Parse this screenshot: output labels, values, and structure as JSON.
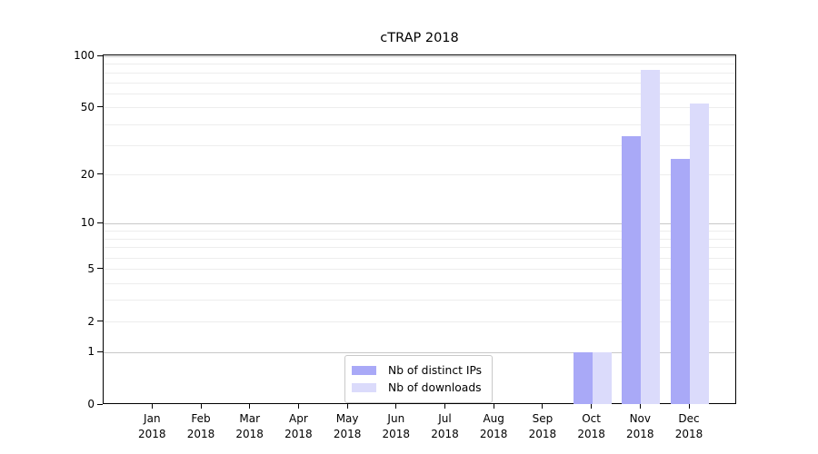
{
  "chart_data": {
    "type": "bar",
    "title": "cTRAP 2018",
    "categories": [
      "Jan 2018",
      "Feb 2018",
      "Mar 2018",
      "Apr 2018",
      "May 2018",
      "Jun 2018",
      "Jul 2018",
      "Aug 2018",
      "Sep 2018",
      "Oct 2018",
      "Nov 2018",
      "Dec 2018"
    ],
    "series": [
      {
        "name": "Nb of distinct IPs",
        "color": "#a9a9f7",
        "values": [
          0,
          0,
          0,
          0,
          0,
          0,
          0,
          0,
          0,
          1,
          34,
          25
        ]
      },
      {
        "name": "Nb of downloads",
        "color": "#dbdbfb",
        "values": [
          0,
          0,
          0,
          0,
          0,
          0,
          0,
          0,
          0,
          1,
          83,
          53
        ]
      }
    ],
    "yticks": [
      0,
      1,
      2,
      5,
      10,
      20,
      50,
      100
    ],
    "ylim": [
      0,
      100
    ],
    "yscale": "log1p",
    "xlabel": "",
    "ylabel": "",
    "grid": "horizontal-major-and-minor",
    "legend_position": "lower-center-inside"
  },
  "colors": {
    "major_grid": "#c8c8c8",
    "minor_grid": "#ededed",
    "spine": "#000000",
    "text": "#000000",
    "legend_border": "#c9c9c9",
    "background": "#ffffff"
  }
}
